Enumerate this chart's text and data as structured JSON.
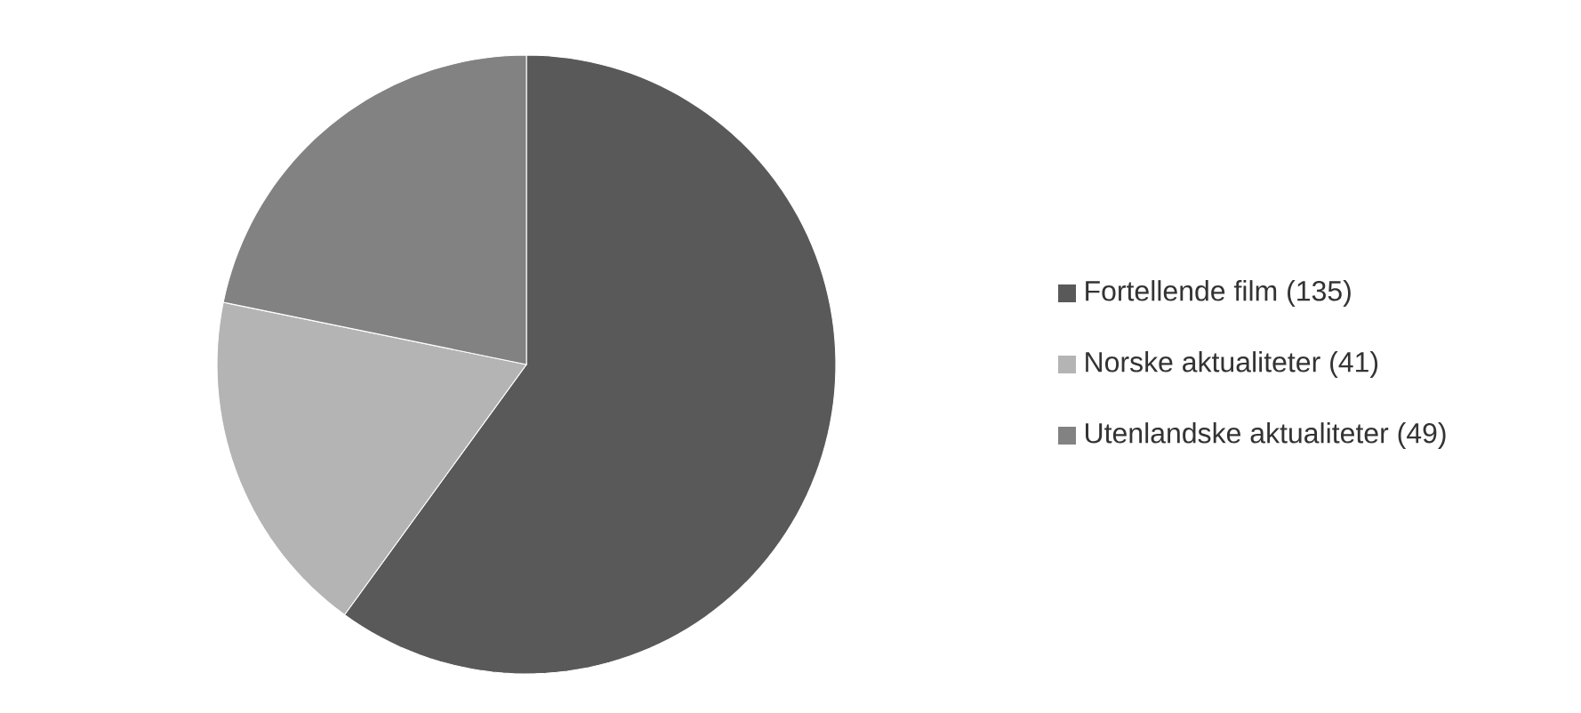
{
  "chart_data": {
    "type": "pie",
    "categories": [
      "Fortellende film (135)",
      "Norske aktualiteter (41)",
      "Utenlandske aktualiteter (49)"
    ],
    "values": [
      135,
      41,
      49
    ],
    "colors": [
      "#595959",
      "#b4b4b4",
      "#828282"
    ],
    "legend": "right"
  }
}
